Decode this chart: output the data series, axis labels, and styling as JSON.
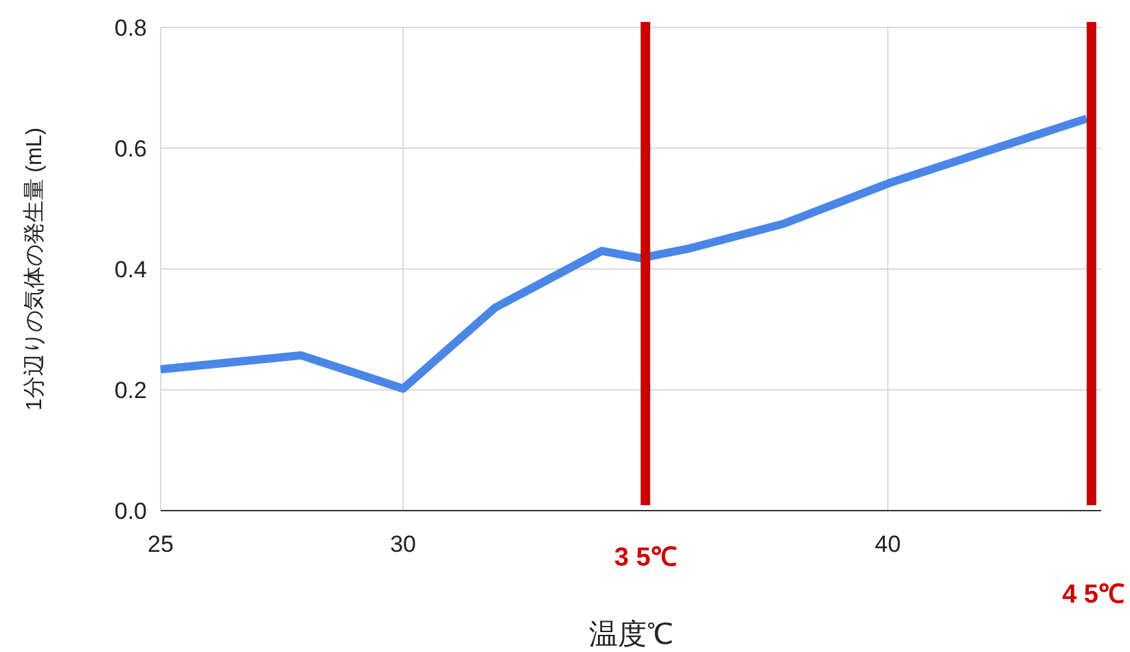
{
  "chart_data": {
    "type": "line",
    "xlabel": "温度℃",
    "ylabel": "1分辺りの気体の発生量 (mL)",
    "x": [
      25,
      27.9,
      30,
      31.9,
      34.1,
      34.9,
      35.9,
      37.85,
      40.05,
      44.1
    ],
    "series": [
      {
        "color": "#4a86e8",
        "values": [
          0.234,
          0.257,
          0.202,
          0.336,
          0.43,
          0.418,
          0.434,
          0.475,
          0.543,
          0.649
        ]
      }
    ],
    "xlim": [
      25,
      44.4
    ],
    "xticks": [
      25,
      30,
      40
    ],
    "ylim": [
      0,
      0.8
    ],
    "yticks": [
      {
        "value": 0,
        "label": "0.0"
      },
      0.2,
      0.4,
      0.6,
      0.8
    ],
    "grid": true,
    "marker": "none",
    "line_style": "solid",
    "ref_lines": [
      {
        "axis": "x",
        "value": 35,
        "label": "3 5℃",
        "color": "#cc0000"
      },
      {
        "axis": "x",
        "value": 44.2,
        "label": "4 5℃",
        "color": "#cc0000"
      }
    ]
  }
}
